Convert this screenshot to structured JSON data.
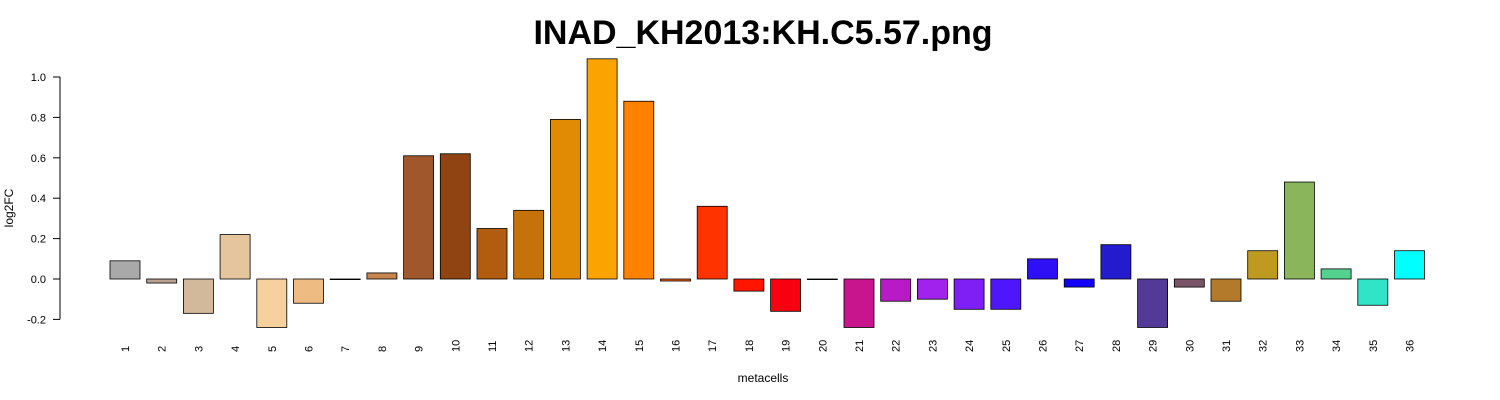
{
  "chart_data": {
    "type": "bar",
    "title": "INAD_KH2013:KH.C5.57.png",
    "xlabel": "metacells",
    "ylabel": "log2FC",
    "ylim": [
      -0.2,
      1.0
    ],
    "yticks": [
      "-0.2",
      "0.0",
      "0.2",
      "0.4",
      "0.6",
      "0.8",
      "1.0"
    ],
    "grid": false,
    "categories": [
      "1",
      "2",
      "3",
      "4",
      "5",
      "6",
      "7",
      "8",
      "9",
      "10",
      "11",
      "12",
      "13",
      "14",
      "15",
      "16",
      "17",
      "18",
      "19",
      "20",
      "21",
      "22",
      "23",
      "24",
      "25",
      "26",
      "27",
      "28",
      "29",
      "30",
      "31",
      "32",
      "33",
      "34",
      "35",
      "36"
    ],
    "values": [
      0.09,
      -0.02,
      -0.17,
      0.22,
      -0.24,
      -0.12,
      0.0,
      0.03,
      0.61,
      0.62,
      0.25,
      0.34,
      0.79,
      1.09,
      0.88,
      -0.01,
      0.36,
      -0.06,
      -0.16,
      0.0,
      -0.24,
      -0.11,
      -0.1,
      -0.15,
      -0.15,
      0.1,
      -0.04,
      0.17,
      -0.24,
      -0.04,
      -0.11,
      0.14,
      0.48,
      0.05,
      -0.13,
      0.14
    ],
    "colors": [
      "#a9a9a9",
      "#b8a190",
      "#d2b99c",
      "#e4c59e",
      "#f6d09d",
      "#eebb82",
      "#d9a06a",
      "#c4854e",
      "#a0572c",
      "#8f4412",
      "#b25c0f",
      "#c5720a",
      "#e18a04",
      "#fba300",
      "#fe8200",
      "#ff6000",
      "#ff3300",
      "#ff1500",
      "#f80010",
      "#e3006f",
      "#c8158e",
      "#b81ac6",
      "#a122ec",
      "#7f1ff5",
      "#4e16fb",
      "#2f10f5",
      "#1000f5",
      "#241bcf",
      "#533a98",
      "#7a5568",
      "#b37a2b",
      "#bf9a21",
      "#8bb55b",
      "#55d18f",
      "#2fe4c7",
      "#00ffff"
    ]
  }
}
